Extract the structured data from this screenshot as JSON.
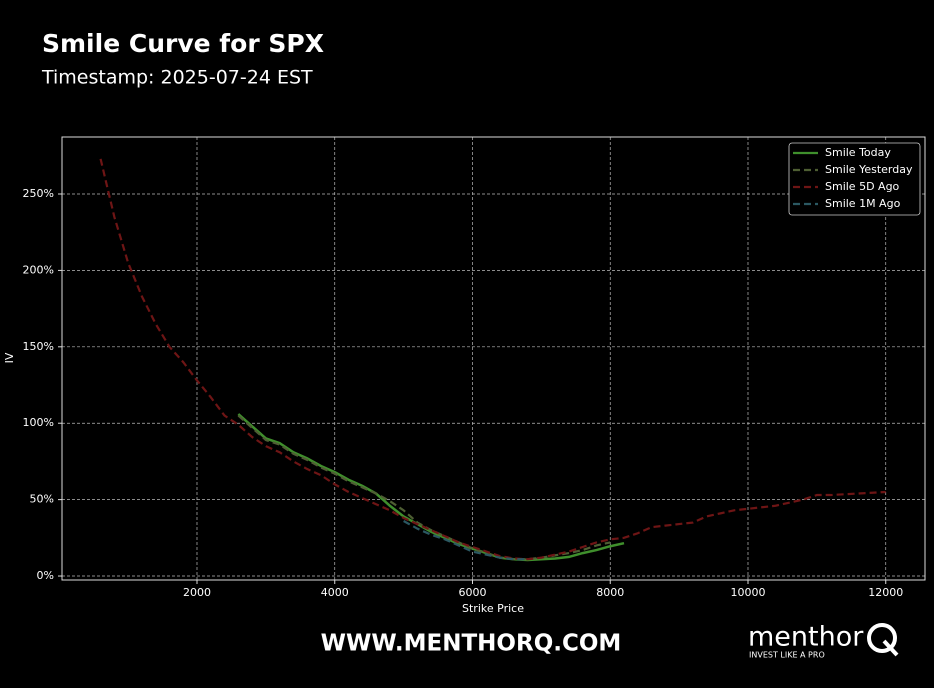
{
  "chart_data": {
    "type": "line",
    "title": "Smile Curve for SPX",
    "subtitle": "Timestamp: 2025-07-24 EST",
    "xlabel": "Strike Price",
    "ylabel": "IV",
    "xlim": [
      40,
      12570
    ],
    "ylim": [
      -2.6,
      287.3
    ],
    "xticks": [
      2000,
      4000,
      6000,
      8000,
      10000,
      12000
    ],
    "yticks": [
      {
        "value": 0,
        "label": "0%"
      },
      {
        "value": 50,
        "label": "50%"
      },
      {
        "value": 100,
        "label": "100%"
      },
      {
        "value": 150,
        "label": "150%"
      },
      {
        "value": 200,
        "label": "200%"
      },
      {
        "value": 250,
        "label": "250%"
      }
    ],
    "grid": true,
    "legend": "upper right",
    "series": [
      {
        "name": "Smile Today",
        "color": "#3f8f2c",
        "dash": false,
        "x": [
          2600,
          2800,
          3000,
          3200,
          3400,
          3600,
          3800,
          4000,
          4200,
          4400,
          4600,
          4800,
          5000,
          5200,
          5400,
          5600,
          5800,
          6000,
          6200,
          6400,
          6600,
          6800,
          7000,
          7200,
          7400,
          7600,
          7800,
          8000,
          8200
        ],
        "values": [
          106,
          98,
          90,
          87,
          81,
          77,
          72,
          68,
          63,
          59,
          54,
          46,
          39,
          34,
          29,
          25,
          21,
          18,
          15,
          12,
          11,
          10.5,
          11,
          11.5,
          12.5,
          15,
          17,
          19.5,
          21.5
        ]
      },
      {
        "name": "Smile Yesterday",
        "color": "#4e5e33",
        "dash": true,
        "x": [
          2600,
          2800,
          3000,
          3200,
          3400,
          3600,
          3800,
          4000,
          4200,
          4400,
          4600,
          4800,
          5000,
          5200,
          5400,
          5600,
          5800,
          6000,
          6200,
          6400,
          6600,
          6800,
          7000,
          7200,
          7400,
          7600,
          7800,
          8000
        ],
        "values": [
          105,
          97,
          89,
          86,
          80,
          76,
          71,
          67,
          62,
          58,
          54,
          49,
          43,
          35,
          30,
          26,
          22,
          18,
          15,
          12,
          11,
          11,
          12,
          13.5,
          15,
          17,
          20,
          22
        ]
      },
      {
        "name": "Smile 5D Ago",
        "color": "#6e1515",
        "dash": true,
        "x": [
          600,
          800,
          1000,
          1200,
          1400,
          1600,
          1800,
          2000,
          2200,
          2400,
          2600,
          2800,
          3000,
          3200,
          3400,
          3600,
          3800,
          4000,
          4200,
          4400,
          4600,
          4800,
          5000,
          5200,
          5400,
          5600,
          5800,
          6000,
          6200,
          6400,
          6600,
          6800,
          7000,
          7200,
          7400,
          7600,
          7800,
          8000,
          8200,
          8400,
          8600,
          8800,
          9000,
          9200,
          9400,
          9600,
          9800,
          10000,
          10200,
          10400,
          10600,
          10800,
          11000,
          11200,
          11400,
          11600,
          11800,
          12000
        ],
        "values": [
          273,
          235,
          205,
          183,
          165,
          150,
          140,
          128,
          117,
          105,
          99,
          91,
          85,
          81,
          75,
          70,
          66,
          60,
          55,
          51,
          47,
          43,
          38,
          34,
          30,
          26,
          22,
          19,
          16,
          13,
          11.5,
          11,
          12,
          14,
          16,
          19,
          22,
          24,
          25,
          28,
          32,
          33,
          34,
          35,
          39,
          41,
          43,
          44,
          45,
          46,
          48,
          50,
          53,
          53,
          53.5,
          54,
          54.5,
          55
        ]
      },
      {
        "name": "Smile 1M Ago",
        "color": "#2b5862",
        "dash": true,
        "x": [
          5000,
          5200,
          5400,
          5600,
          5800,
          6000,
          6200,
          6400,
          6600,
          6800
        ],
        "values": [
          36,
          31,
          27,
          24,
          20,
          16,
          14,
          12,
          11,
          11
        ]
      }
    ]
  },
  "branding": {
    "website": "WWW.MENTHORQ.COM",
    "logo": "menthor",
    "tagline": "INVEST LIKE A PRO"
  }
}
